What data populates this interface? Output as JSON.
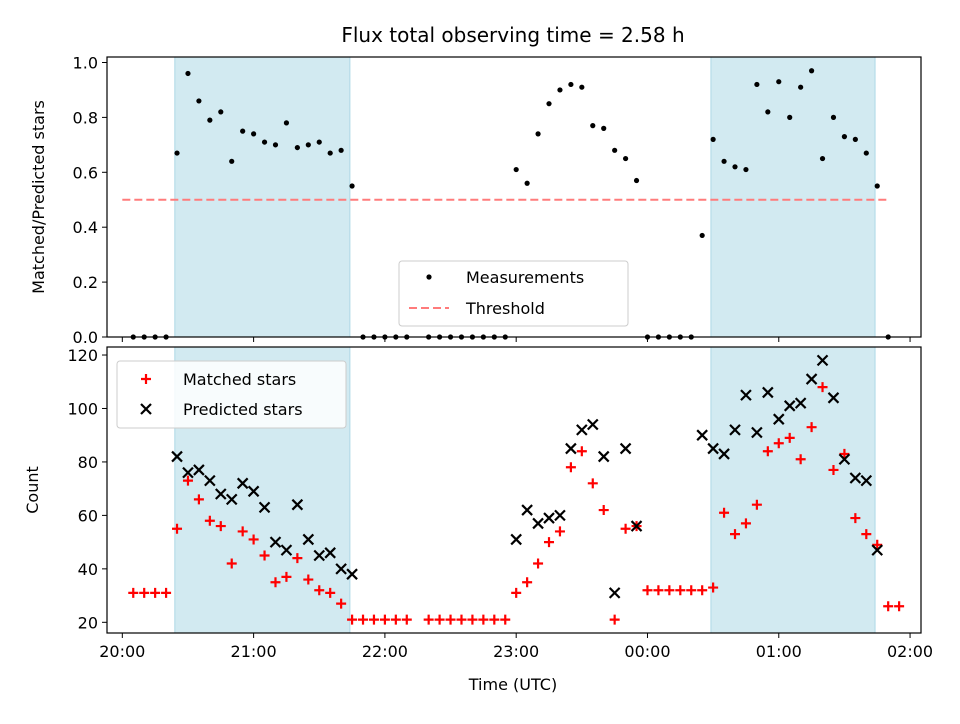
{
  "figure": {
    "title": "Flux total observing time = 2.58 h",
    "xlabel": "Time (UTC)"
  },
  "colors": {
    "shade": "#add8e6",
    "measurement": "#000000",
    "threshold": "#ff7b7b",
    "matched": "#ff0000",
    "predicted": "#000000"
  },
  "chart_data": [
    {
      "type": "scatter",
      "panel": "top",
      "ylabel": "Matched/Predicted stars",
      "xlabel": "",
      "xlim": [
        "19:53",
        "02:05"
      ],
      "ylim": [
        0,
        1.02
      ],
      "x_ticks": [
        "20:00",
        "21:00",
        "22:00",
        "23:00",
        "00:00",
        "01:00",
        "02:00"
      ],
      "y_ticks": [
        "0.0",
        "0.2",
        "0.4",
        "0.6",
        "0.8",
        "1.0"
      ],
      "shaded_intervals": [
        [
          "20:24",
          "21:44"
        ],
        [
          "00:29",
          "01:44"
        ]
      ],
      "legend_position": "lower-center",
      "series": [
        {
          "name": "Measurements",
          "marker": "dot",
          "points": [
            [
              "20:05",
              0
            ],
            [
              "20:10",
              0
            ],
            [
              "20:15",
              0
            ],
            [
              "20:20",
              0
            ],
            [
              "20:25",
              0.67
            ],
            [
              "20:30",
              0.96
            ],
            [
              "20:35",
              0.86
            ],
            [
              "20:40",
              0.79
            ],
            [
              "20:45",
              0.82
            ],
            [
              "20:50",
              0.64
            ],
            [
              "20:55",
              0.75
            ],
            [
              "21:00",
              0.74
            ],
            [
              "21:05",
              0.71
            ],
            [
              "21:10",
              0.7
            ],
            [
              "21:15",
              0.78
            ],
            [
              "21:20",
              0.69
            ],
            [
              "21:25",
              0.7
            ],
            [
              "21:30",
              0.71
            ],
            [
              "21:35",
              0.67
            ],
            [
              "21:40",
              0.68
            ],
            [
              "21:45",
              0.55
            ],
            [
              "21:50",
              0
            ],
            [
              "21:55",
              0
            ],
            [
              "22:00",
              0
            ],
            [
              "22:05",
              0
            ],
            [
              "22:10",
              0
            ],
            [
              "22:20",
              0
            ],
            [
              "22:25",
              0
            ],
            [
              "22:30",
              0
            ],
            [
              "22:35",
              0
            ],
            [
              "22:40",
              0
            ],
            [
              "22:45",
              0
            ],
            [
              "22:50",
              0
            ],
            [
              "22:55",
              0
            ],
            [
              "23:00",
              0.61
            ],
            [
              "23:05",
              0.56
            ],
            [
              "23:10",
              0.74
            ],
            [
              "23:15",
              0.85
            ],
            [
              "23:20",
              0.9
            ],
            [
              "23:25",
              0.92
            ],
            [
              "23:30",
              0.91
            ],
            [
              "23:35",
              0.77
            ],
            [
              "23:40",
              0.76
            ],
            [
              "23:45",
              0.68
            ],
            [
              "23:50",
              0.65
            ],
            [
              "23:55",
              0.57
            ],
            [
              "00:00",
              0
            ],
            [
              "00:05",
              0
            ],
            [
              "00:10",
              0
            ],
            [
              "00:15",
              0
            ],
            [
              "00:20",
              0
            ],
            [
              "00:25",
              0.37
            ],
            [
              "00:30",
              0.72
            ],
            [
              "00:35",
              0.64
            ],
            [
              "00:40",
              0.62
            ],
            [
              "00:45",
              0.61
            ],
            [
              "00:50",
              0.92
            ],
            [
              "00:55",
              0.82
            ],
            [
              "01:00",
              0.93
            ],
            [
              "01:05",
              0.8
            ],
            [
              "01:10",
              0.91
            ],
            [
              "01:15",
              0.97
            ],
            [
              "01:20",
              0.65
            ],
            [
              "01:25",
              0.8
            ],
            [
              "01:30",
              0.73
            ],
            [
              "01:35",
              0.72
            ],
            [
              "01:40",
              0.67
            ],
            [
              "01:45",
              0.55
            ],
            [
              "01:50",
              0
            ]
          ]
        },
        {
          "name": "Threshold",
          "style": "dashed",
          "points": [
            [
              "20:00",
              0.5
            ],
            [
              "01:50",
              0.5
            ]
          ]
        }
      ]
    },
    {
      "type": "scatter",
      "panel": "bottom",
      "ylabel": "Count",
      "xlabel": "Time (UTC)",
      "xlim": [
        "19:53",
        "02:05"
      ],
      "ylim": [
        16,
        123
      ],
      "x_ticks": [
        "20:00",
        "21:00",
        "22:00",
        "23:00",
        "00:00",
        "01:00",
        "02:00"
      ],
      "y_ticks": [
        "20",
        "40",
        "60",
        "80",
        "100",
        "120"
      ],
      "shaded_intervals": [
        [
          "20:24",
          "21:44"
        ],
        [
          "00:29",
          "01:44"
        ]
      ],
      "legend_position": "upper-left",
      "series": [
        {
          "name": "Matched stars",
          "marker": "plus",
          "points": [
            [
              "20:05",
              31
            ],
            [
              "20:10",
              31
            ],
            [
              "20:15",
              31
            ],
            [
              "20:20",
              31
            ],
            [
              "20:25",
              55
            ],
            [
              "20:30",
              73
            ],
            [
              "20:35",
              66
            ],
            [
              "20:40",
              58
            ],
            [
              "20:45",
              56
            ],
            [
              "20:50",
              42
            ],
            [
              "20:55",
              54
            ],
            [
              "21:00",
              51
            ],
            [
              "21:05",
              45
            ],
            [
              "21:10",
              35
            ],
            [
              "21:15",
              37
            ],
            [
              "21:20",
              44
            ],
            [
              "21:25",
              36
            ],
            [
              "21:30",
              32
            ],
            [
              "21:35",
              31
            ],
            [
              "21:40",
              27
            ],
            [
              "21:45",
              21
            ],
            [
              "21:50",
              21
            ],
            [
              "21:55",
              21
            ],
            [
              "22:00",
              21
            ],
            [
              "22:05",
              21
            ],
            [
              "22:10",
              21
            ],
            [
              "22:20",
              21
            ],
            [
              "22:25",
              21
            ],
            [
              "22:30",
              21
            ],
            [
              "22:35",
              21
            ],
            [
              "22:40",
              21
            ],
            [
              "22:45",
              21
            ],
            [
              "22:50",
              21
            ],
            [
              "22:55",
              21
            ],
            [
              "23:00",
              31
            ],
            [
              "23:05",
              35
            ],
            [
              "23:10",
              42
            ],
            [
              "23:15",
              50
            ],
            [
              "23:20",
              54
            ],
            [
              "23:25",
              78
            ],
            [
              "23:30",
              84
            ],
            [
              "23:35",
              72
            ],
            [
              "23:40",
              62
            ],
            [
              "23:45",
              21
            ],
            [
              "23:50",
              55
            ],
            [
              "23:55",
              56
            ],
            [
              "00:00",
              32
            ],
            [
              "00:05",
              32
            ],
            [
              "00:10",
              32
            ],
            [
              "00:15",
              32
            ],
            [
              "00:20",
              32
            ],
            [
              "00:25",
              32
            ],
            [
              "00:30",
              33
            ],
            [
              "00:35",
              61
            ],
            [
              "00:40",
              53
            ],
            [
              "00:45",
              57
            ],
            [
              "00:50",
              64
            ],
            [
              "00:55",
              84
            ],
            [
              "01:00",
              87
            ],
            [
              "01:05",
              89
            ],
            [
              "01:10",
              81
            ],
            [
              "01:15",
              93
            ],
            [
              "01:20",
              108
            ],
            [
              "01:25",
              77
            ],
            [
              "01:30",
              83
            ],
            [
              "01:35",
              59
            ],
            [
              "01:40",
              53
            ],
            [
              "01:45",
              49
            ],
            [
              "01:50",
              26
            ],
            [
              "01:55",
              26
            ]
          ]
        },
        {
          "name": "Predicted stars",
          "marker": "x",
          "points": [
            [
              "20:25",
              82
            ],
            [
              "20:30",
              76
            ],
            [
              "20:35",
              77
            ],
            [
              "20:40",
              73
            ],
            [
              "20:45",
              68
            ],
            [
              "20:50",
              66
            ],
            [
              "20:55",
              72
            ],
            [
              "21:00",
              69
            ],
            [
              "21:05",
              63
            ],
            [
              "21:10",
              50
            ],
            [
              "21:15",
              47
            ],
            [
              "21:20",
              64
            ],
            [
              "21:25",
              51
            ],
            [
              "21:30",
              45
            ],
            [
              "21:35",
              46
            ],
            [
              "21:40",
              40
            ],
            [
              "21:45",
              38
            ],
            [
              "23:00",
              51
            ],
            [
              "23:05",
              62
            ],
            [
              "23:10",
              57
            ],
            [
              "23:15",
              59
            ],
            [
              "23:20",
              60
            ],
            [
              "23:25",
              85
            ],
            [
              "23:30",
              92
            ],
            [
              "23:35",
              94
            ],
            [
              "23:40",
              82
            ],
            [
              "23:45",
              31
            ],
            [
              "23:50",
              85
            ],
            [
              "23:55",
              56
            ],
            [
              "00:25",
              90
            ],
            [
              "00:30",
              85
            ],
            [
              "00:35",
              83
            ],
            [
              "00:40",
              92
            ],
            [
              "00:45",
              105
            ],
            [
              "00:50",
              91
            ],
            [
              "00:55",
              106
            ],
            [
              "01:00",
              96
            ],
            [
              "01:05",
              101
            ],
            [
              "01:10",
              102
            ],
            [
              "01:15",
              111
            ],
            [
              "01:20",
              118
            ],
            [
              "01:25",
              104
            ],
            [
              "01:30",
              81
            ],
            [
              "01:35",
              74
            ],
            [
              "01:40",
              73
            ],
            [
              "01:45",
              47
            ]
          ]
        }
      ]
    }
  ]
}
